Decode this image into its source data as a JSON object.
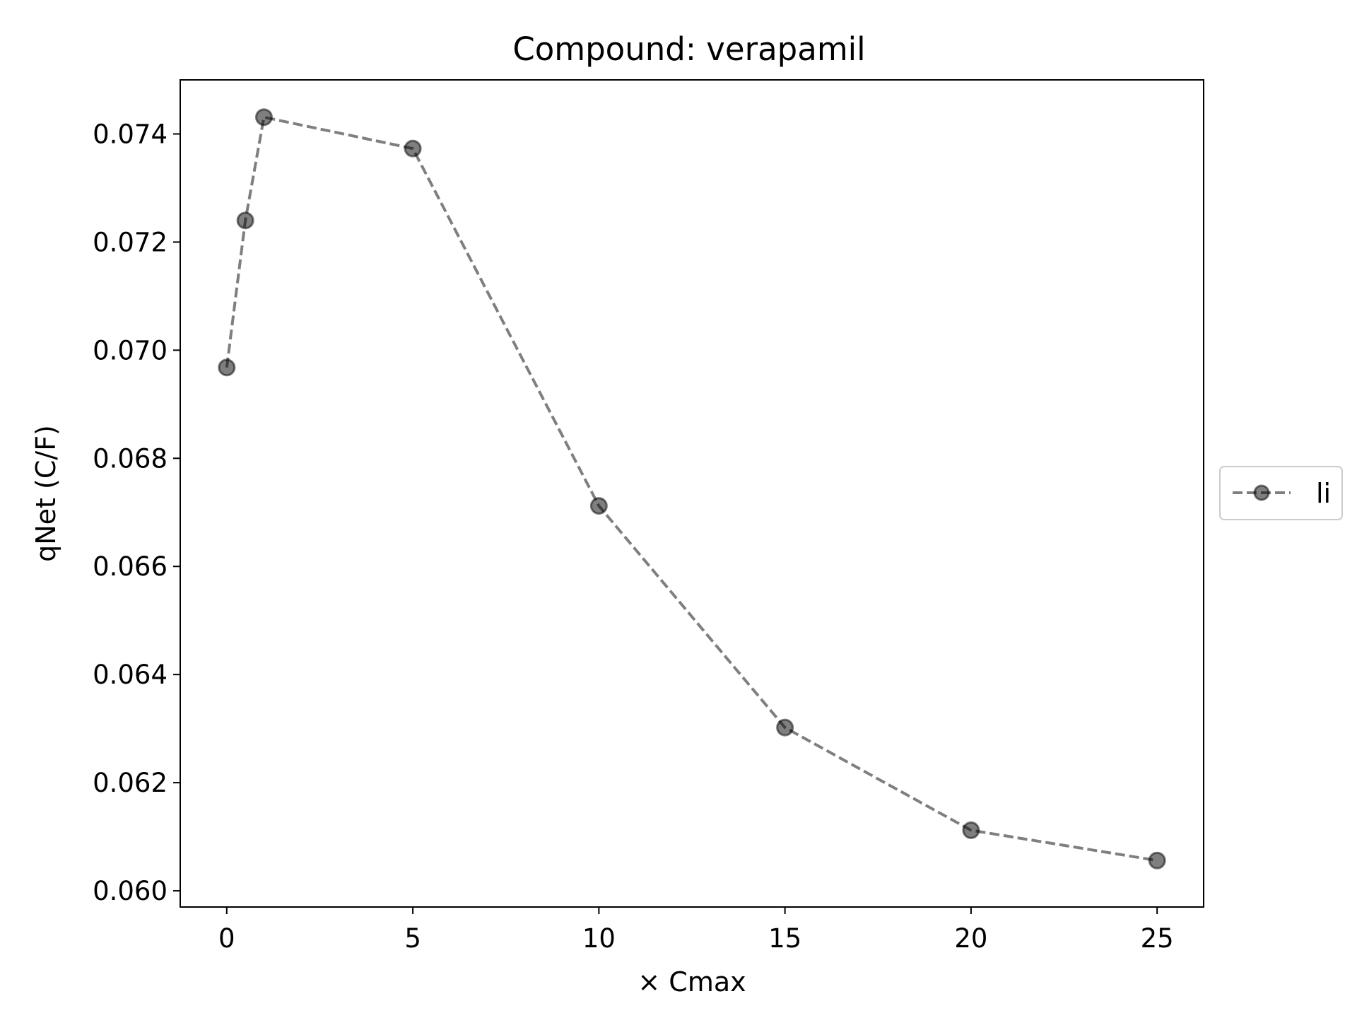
{
  "chart_data": {
    "type": "line",
    "title": "Compound: verapamil",
    "xlabel": "× Cmax",
    "ylabel": "qNet (C/F)",
    "xlim": [
      -1.25,
      26.25
    ],
    "ylim": [
      0.0597,
      0.075
    ],
    "xticks": [
      0,
      5,
      10,
      15,
      20,
      25
    ],
    "xtick_labels": [
      "0",
      "5",
      "10",
      "15",
      "20",
      "25"
    ],
    "yticks": [
      0.06,
      0.062,
      0.064,
      0.066,
      0.068,
      0.07,
      0.072,
      0.074
    ],
    "ytick_labels": [
      "0.060",
      "0.062",
      "0.064",
      "0.066",
      "0.068",
      "0.070",
      "0.072",
      "0.074"
    ],
    "grid": false,
    "legend_position": "center-right outside",
    "series": [
      {
        "name": "li",
        "color": "#000000",
        "opacity": 0.5,
        "line_style": "dashed",
        "marker": "circle",
        "x": [
          0,
          0.5,
          1,
          5,
          10,
          15,
          20,
          25
        ],
        "y": [
          0.06968,
          0.0724,
          0.07431,
          0.07373,
          0.06712,
          0.06302,
          0.06112,
          0.06056
        ]
      }
    ]
  }
}
